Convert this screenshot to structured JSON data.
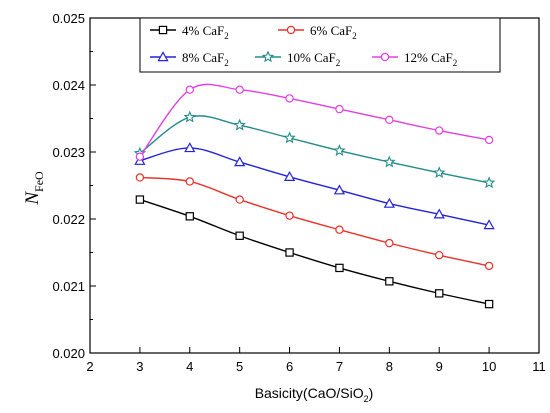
{
  "chart_data": {
    "type": "line",
    "xlabel": "Basicity(CaO/SiO",
    "xlabel_sub": "2",
    "xlabel_end": ")",
    "ylabel_main": "N",
    "ylabel_sub": "FeO",
    "xlim": [
      2,
      11
    ],
    "ylim": [
      0.02,
      0.025
    ],
    "xticks": [
      "2",
      "3",
      "4",
      "5",
      "6",
      "7",
      "8",
      "9",
      "10",
      "11"
    ],
    "yticks": [
      "0.020",
      "0.021",
      "0.022",
      "0.023",
      "0.024",
      "0.025"
    ],
    "x": [
      3,
      4,
      5,
      6,
      7,
      8,
      9,
      10
    ],
    "legend_position": "top",
    "series": [
      {
        "name": "4%  CaF",
        "sub": "2",
        "color": "#000000",
        "marker": "square",
        "values": [
          0.02229,
          0.02204,
          0.02175,
          0.0215,
          0.02127,
          0.02107,
          0.02089,
          0.02073
        ]
      },
      {
        "name": "6%  CaF",
        "sub": "2",
        "color": "#e8322a",
        "marker": "circle",
        "values": [
          0.02262,
          0.02256,
          0.02229,
          0.02205,
          0.02184,
          0.02164,
          0.02146,
          0.0213
        ]
      },
      {
        "name": "8%  CaF",
        "sub": "2",
        "color": "#2424d6",
        "marker": "triangle",
        "values": [
          0.02287,
          0.02306,
          0.02285,
          0.02263,
          0.02243,
          0.02223,
          0.02207,
          0.02191
        ]
      },
      {
        "name": "10%  CaF",
        "sub": "2",
        "color": "#238a8a",
        "marker": "star",
        "values": [
          0.02298,
          0.02352,
          0.0234,
          0.02321,
          0.02302,
          0.02285,
          0.02269,
          0.02254
        ]
      },
      {
        "name": "12%  CaF",
        "sub": "2",
        "color": "#e040e0",
        "marker": "circle",
        "values": [
          0.02293,
          0.02393,
          0.02393,
          0.0238,
          0.02364,
          0.02348,
          0.02332,
          0.02318
        ]
      }
    ]
  }
}
